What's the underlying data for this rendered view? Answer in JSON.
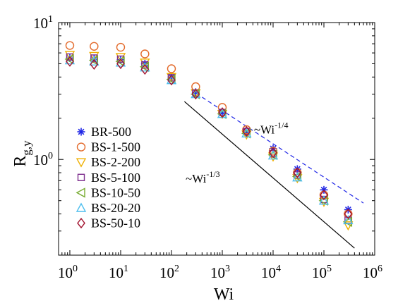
{
  "chart_data": {
    "type": "scatter",
    "xlabel": "Wi",
    "ylabel_main": "R",
    "ylabel_sub": "g,y",
    "x_scale": "log",
    "y_scale": "log",
    "xlim": [
      0.6,
      1000000
    ],
    "ylim": [
      0.2,
      10
    ],
    "x_ticks": [
      {
        "value": 1,
        "base": "10",
        "exp": "0"
      },
      {
        "value": 10,
        "base": "10",
        "exp": "1"
      },
      {
        "value": 100,
        "base": "10",
        "exp": "2"
      },
      {
        "value": 1000,
        "base": "10",
        "exp": "3"
      },
      {
        "value": 10000,
        "base": "10",
        "exp": "4"
      },
      {
        "value": 100000,
        "base": "10",
        "exp": "5"
      },
      {
        "value": 1000000,
        "base": "10",
        "exp": "6"
      }
    ],
    "y_ticks": [
      {
        "value": 1,
        "base": "10",
        "exp": "0"
      },
      {
        "value": 10,
        "base": "10",
        "exp": "1"
      }
    ],
    "legend_placement": "left",
    "grid": false,
    "series": [
      {
        "name": "BR-500",
        "marker": "asterisk",
        "color": "#1f26e6",
        "x": [
          1,
          3,
          10,
          30,
          100,
          300,
          1000,
          3000,
          10000,
          30000,
          100000,
          300000
        ],
        "y": [
          5.5,
          5.4,
          5.35,
          5.0,
          4.0,
          3.1,
          2.2,
          1.6,
          1.2,
          0.85,
          0.6,
          0.43
        ]
      },
      {
        "name": "BS-1-500",
        "marker": "circle",
        "color": "#e36a2b",
        "x": [
          1,
          3,
          10,
          30,
          100,
          300,
          1000,
          3000,
          10000,
          30000,
          100000,
          300000
        ],
        "y": [
          6.8,
          6.7,
          6.6,
          5.9,
          4.6,
          3.4,
          2.4,
          1.65,
          1.15,
          0.8,
          0.55,
          0.4
        ]
      },
      {
        "name": "BS-2-200",
        "marker": "triangle-down",
        "color": "#efb000",
        "x": [
          1,
          3,
          10,
          30,
          100,
          300,
          1000,
          3000,
          10000,
          30000,
          100000,
          300000
        ],
        "y": [
          5.8,
          5.7,
          5.6,
          5.1,
          4.0,
          3.05,
          2.15,
          1.52,
          1.05,
          0.73,
          0.49,
          0.33
        ]
      },
      {
        "name": "BS-5-100",
        "marker": "square",
        "color": "#7e2f8e",
        "x": [
          1,
          3,
          10,
          30,
          100,
          300,
          1000,
          3000,
          10000,
          30000,
          100000,
          300000
        ],
        "y": [
          5.6,
          5.5,
          5.4,
          4.9,
          3.95,
          3.05,
          2.2,
          1.6,
          1.1,
          0.77,
          0.51,
          0.36
        ]
      },
      {
        "name": "BS-10-50",
        "marker": "triangle-left",
        "color": "#77ac30",
        "x": [
          1,
          3,
          10,
          30,
          100,
          300,
          1000,
          3000,
          10000,
          30000,
          100000,
          300000
        ],
        "y": [
          5.4,
          5.3,
          5.2,
          4.75,
          3.85,
          3.0,
          2.15,
          1.55,
          1.08,
          0.75,
          0.5,
          0.35
        ]
      },
      {
        "name": "BS-20-20",
        "marker": "triangle-up",
        "color": "#4dbeee",
        "x": [
          1,
          3,
          10,
          30,
          100,
          300,
          1000,
          3000,
          10000,
          30000,
          100000,
          300000
        ],
        "y": [
          5.3,
          5.2,
          5.1,
          4.7,
          3.8,
          3.0,
          2.15,
          1.55,
          1.07,
          0.74,
          0.5,
          0.36
        ]
      },
      {
        "name": "BS-50-10",
        "marker": "diamond",
        "color": "#a2142f",
        "x": [
          1,
          3,
          10,
          30,
          100,
          300,
          1000,
          3000,
          10000,
          30000,
          100000,
          300000
        ],
        "y": [
          5.2,
          4.95,
          5.0,
          4.55,
          3.8,
          3.0,
          2.2,
          1.6,
          1.12,
          0.8,
          0.55,
          0.4
        ]
      }
    ],
    "lines": [
      {
        "label_base": "~Wi",
        "label_exp": "-1/4",
        "style": "dashed",
        "color": "#1f26e6",
        "x": [
          400,
          600000
        ],
        "y": [
          2.85,
          0.48
        ]
      },
      {
        "label_base": "~Wi",
        "label_exp": "-1/3",
        "style": "solid",
        "color": "#000000",
        "x": [
          180,
          400000
        ],
        "y": [
          2.65,
          0.225
        ]
      }
    ]
  }
}
